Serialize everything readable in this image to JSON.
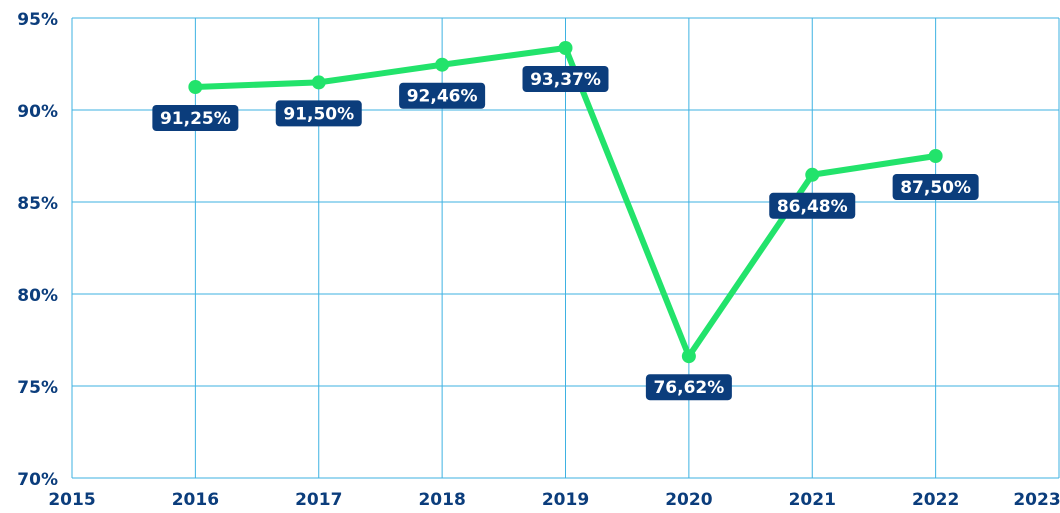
{
  "chart_data": {
    "type": "line",
    "x": [
      2016,
      2017,
      2018,
      2019,
      2020,
      2021,
      2022
    ],
    "series": [
      {
        "color": "#22e36b",
        "values": [
          91.25,
          91.5,
          92.46,
          93.37,
          76.62,
          86.48,
          87.5
        ],
        "value_labels": [
          "91,25%",
          "91,50%",
          "92,46%",
          "93,37%",
          "76,62%",
          "86,48%",
          "87,50%"
        ]
      }
    ],
    "xlim": [
      2015,
      2023
    ],
    "xticks": [
      2015,
      2016,
      2017,
      2018,
      2019,
      2020,
      2021,
      2022,
      2023
    ],
    "ylim": [
      70,
      95
    ],
    "yticks": [
      {
        "value": 70,
        "label": "70%"
      },
      {
        "value": 75,
        "label": "75%"
      },
      {
        "value": 80,
        "label": "80%"
      },
      {
        "value": 85,
        "label": "85%"
      },
      {
        "value": 90,
        "label": "90%"
      },
      {
        "value": 95,
        "label": "95%"
      }
    ],
    "grid": true,
    "label_color": "#0b3d7c",
    "grid_color": "#3eb2e2"
  }
}
